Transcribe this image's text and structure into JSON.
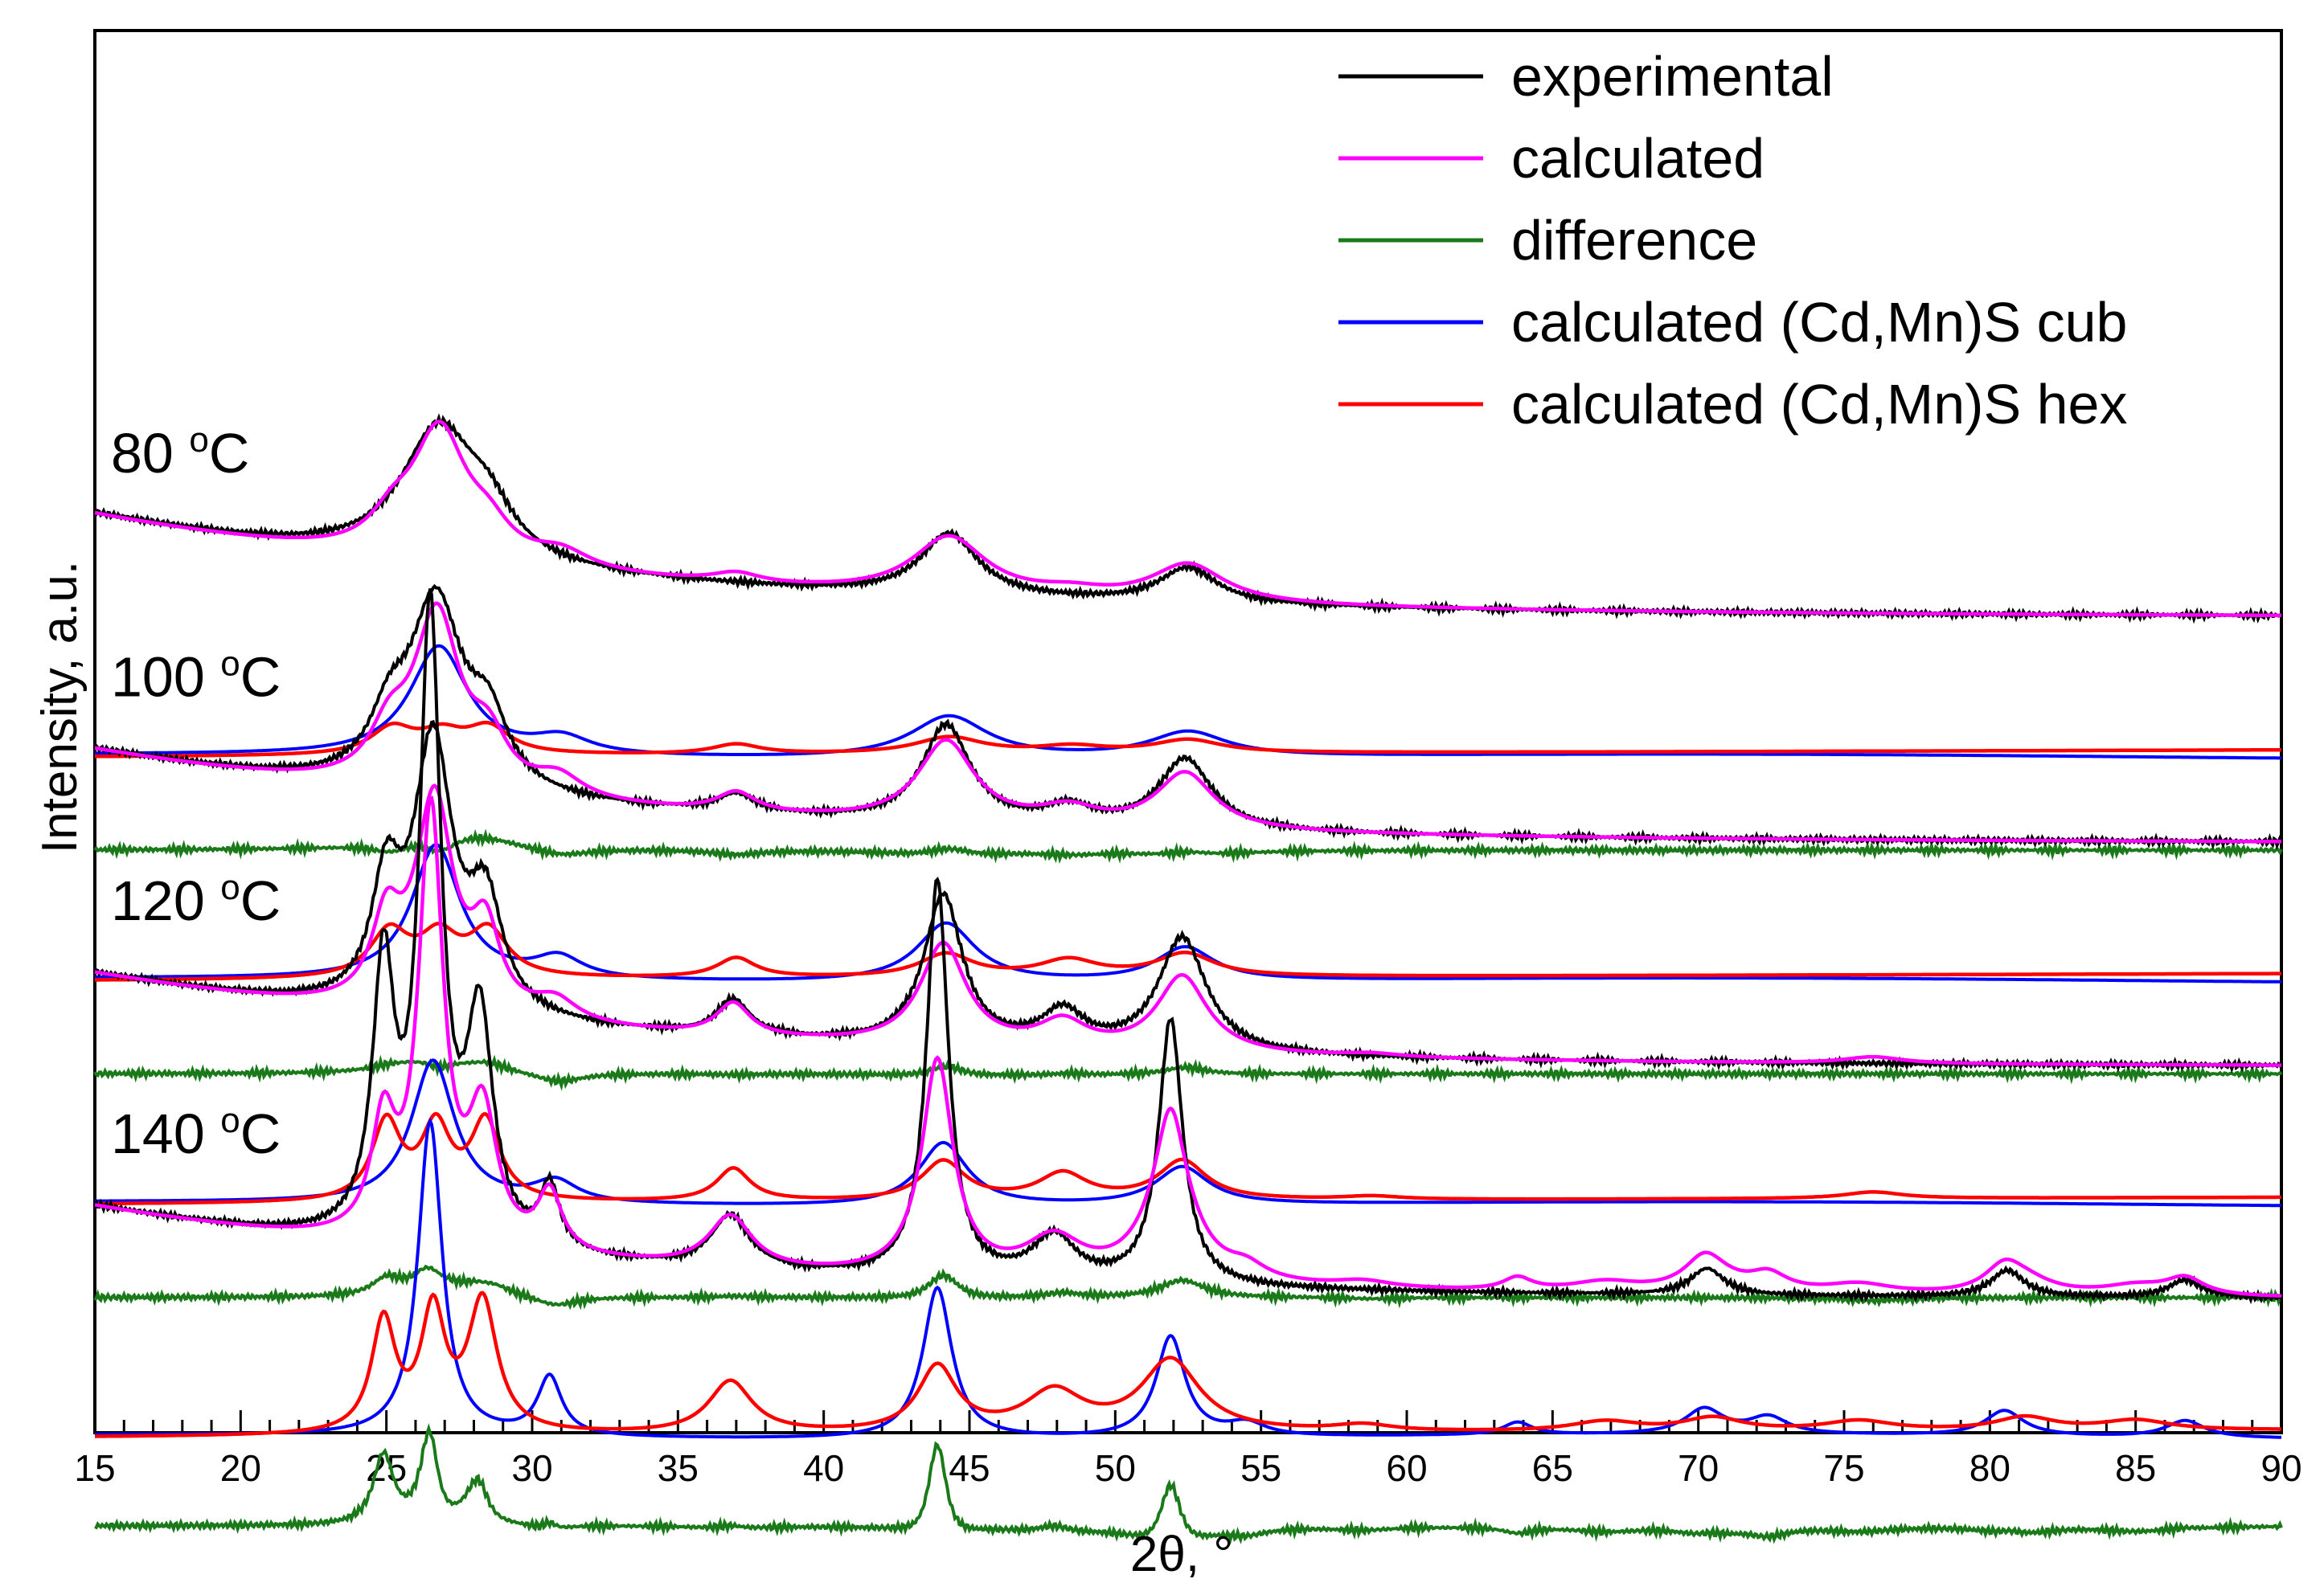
{
  "chart_data": {
    "type": "line",
    "title": "",
    "xlabel": "2θ, °",
    "ylabel": "Intensity, a.u.",
    "xlim": [
      15,
      90
    ],
    "x_ticks": [
      15,
      20,
      25,
      30,
      35,
      40,
      45,
      50,
      55,
      60,
      65,
      70,
      75,
      80,
      85,
      90
    ],
    "y_ticks": [],
    "legend_position": "top-right",
    "legend": [
      {
        "key": "experimental",
        "label": "experimental",
        "color": "#000000"
      },
      {
        "key": "calculated",
        "label": "calculated",
        "color": "#ff00ff"
      },
      {
        "key": "difference",
        "label": "difference",
        "color": "#1a7a1a"
      },
      {
        "key": "cub",
        "label": "calculated (Cd,Mn)S cub",
        "color": "#0000ff"
      },
      {
        "key": "hex",
        "label": "calculated (Cd,Mn)S hex",
        "color": "#ff0000"
      }
    ],
    "groups": [
      {
        "label": "80",
        "unit": "C",
        "deg": "o",
        "profile": {
          "offset": 17.2,
          "background": [
            2.2,
            0.6
          ],
          "cub_peaks": [
            [
              26.8,
              2.6,
              1.2
            ],
            [
              31.0,
              0.4,
              1.2
            ],
            [
              44.3,
              1.0,
              1.6
            ],
            [
              52.5,
              0.6,
              1.6
            ]
          ],
          "hex_peaks": [
            [
              25.2,
              0.8,
              0.9
            ],
            [
              26.9,
              0.6,
              0.9
            ],
            [
              28.5,
              0.8,
              0.9
            ],
            [
              37.0,
              0.3,
              1.0
            ],
            [
              44.3,
              0.5,
              1.4
            ],
            [
              48.5,
              0.2,
              1.4
            ],
            [
              52.5,
              0.4,
              1.4
            ]
          ],
          "exp_peaks": [
            [
              26.8,
              3.0,
              1.6
            ],
            [
              28.5,
              0.8,
              1.0
            ],
            [
              44.3,
              1.4,
              1.2
            ],
            [
              52.5,
              0.8,
              1.2
            ]
          ]
        }
      },
      {
        "label": "100",
        "unit": "C",
        "deg": "o",
        "profile": {
          "offset": 12.4,
          "background": [
            2.0,
            0.5
          ],
          "cub_peaks": [
            [
              26.7,
              3.2,
              1.0
            ],
            [
              30.9,
              0.5,
              1.0
            ],
            [
              44.2,
              1.4,
              1.2
            ],
            [
              52.4,
              0.8,
              1.2
            ]
          ],
          "hex_peaks": [
            [
              25.1,
              1.4,
              0.8
            ],
            [
              26.8,
              1.2,
              0.8
            ],
            [
              28.5,
              1.4,
              0.8
            ],
            [
              37.0,
              0.6,
              0.8
            ],
            [
              44.2,
              0.7,
              1.1
            ],
            [
              48.4,
              0.5,
              1.2
            ],
            [
              52.4,
              0.7,
              1.2
            ]
          ],
          "exp_peaks": [
            [
              26.7,
              4.2,
              1.1
            ],
            [
              25.1,
              1.2,
              0.8
            ],
            [
              28.5,
              1.4,
              0.8
            ],
            [
              37.0,
              0.4,
              0.8
            ],
            [
              44.2,
              2.2,
              1.0
            ],
            [
              48.4,
              0.4,
              1.0
            ],
            [
              52.4,
              1.6,
              1.1
            ]
          ]
        }
      },
      {
        "label": "120",
        "unit": "C",
        "deg": "o",
        "profile": {
          "offset": 7.6,
          "background": [
            2.0,
            0.5
          ],
          "cub_peaks": [
            [
              26.6,
              3.4,
              0.9
            ],
            [
              30.8,
              0.5,
              0.9
            ],
            [
              44.1,
              1.5,
              1.0
            ],
            [
              52.3,
              0.9,
              1.1
            ]
          ],
          "hex_peaks": [
            [
              25.0,
              2.4,
              0.6
            ],
            [
              26.7,
              2.2,
              0.6
            ],
            [
              28.4,
              2.4,
              0.6
            ],
            [
              36.9,
              1.0,
              0.7
            ],
            [
              44.1,
              1.2,
              0.9
            ],
            [
              48.2,
              0.8,
              1.0
            ],
            [
              52.3,
              1.2,
              1.0
            ],
            [
              58.8,
              0.1,
              1.2
            ],
            [
              76.0,
              0.2,
              1.2
            ]
          ],
          "exp_peaks": [
            [
              26.6,
              6.0,
              0.8
            ],
            [
              25.0,
              2.6,
              0.6
            ],
            [
              28.4,
              2.4,
              0.7
            ],
            [
              36.9,
              0.8,
              0.7
            ],
            [
              44.1,
              3.4,
              0.8
            ],
            [
              48.2,
              0.8,
              0.9
            ],
            [
              52.3,
              2.6,
              1.0
            ]
          ]
        }
      },
      {
        "label": "140",
        "unit": "C",
        "deg": "o",
        "profile": {
          "offset": 2.6,
          "background": [
            2.0,
            0.5
          ],
          "cub_peaks": [
            [
              26.5,
              7.5,
              0.5
            ],
            [
              30.6,
              1.4,
              0.5
            ],
            [
              43.9,
              3.6,
              0.6
            ],
            [
              51.9,
              2.4,
              0.6
            ],
            [
              54.5,
              0.3,
              0.8
            ],
            [
              63.8,
              0.3,
              0.6
            ],
            [
              70.2,
              0.6,
              0.8
            ],
            [
              72.4,
              0.4,
              0.8
            ],
            [
              80.5,
              0.6,
              0.8
            ],
            [
              86.7,
              0.4,
              0.8
            ]
          ],
          "hex_peaks": [
            [
              24.9,
              3.4,
              0.5
            ],
            [
              26.6,
              3.6,
              0.5
            ],
            [
              28.3,
              4.0,
              0.6
            ],
            [
              36.8,
              1.6,
              0.9
            ],
            [
              43.9,
              2.0,
              0.8
            ],
            [
              47.9,
              1.2,
              1.2
            ],
            [
              51.9,
              2.2,
              1.2
            ],
            [
              58.5,
              0.2,
              1.2
            ],
            [
              66.8,
              0.3,
              1.4
            ],
            [
              70.5,
              0.4,
              1.2
            ],
            [
              75.5,
              0.3,
              1.4
            ],
            [
              81.2,
              0.4,
              1.2
            ],
            [
              85.0,
              0.3,
              1.4
            ]
          ],
          "exp_peaks": [
            [
              26.5,
              14.0,
              0.45
            ],
            [
              24.9,
              6.0,
              0.45
            ],
            [
              28.2,
              5.0,
              0.55
            ],
            [
              30.6,
              1.4,
              0.4
            ],
            [
              36.8,
              1.2,
              0.8
            ],
            [
              43.9,
              9.0,
              0.45
            ],
            [
              47.9,
              1.0,
              0.9
            ],
            [
              51.9,
              6.0,
              0.5
            ],
            [
              70.3,
              0.6,
              0.7
            ],
            [
              80.6,
              0.6,
              0.7
            ],
            [
              86.7,
              0.4,
              0.7
            ]
          ]
        }
      }
    ]
  }
}
